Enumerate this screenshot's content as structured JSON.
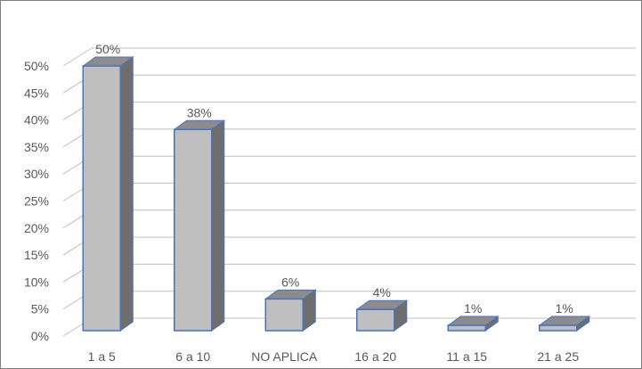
{
  "chart_data": {
    "type": "bar",
    "title": "",
    "xlabel": "",
    "ylabel": "",
    "categories": [
      "1 a 5",
      "6 a 10",
      "NO APLICA",
      "16 a 20",
      "11 a 15",
      "21 a 25"
    ],
    "values": [
      50,
      38,
      6,
      4,
      1,
      1
    ],
    "data_labels": [
      "50%",
      "38%",
      "6%",
      "4%",
      "1%",
      "1%"
    ],
    "ylim": [
      0,
      50
    ],
    "yticks": [
      0,
      5,
      10,
      15,
      20,
      25,
      30,
      35,
      40,
      45,
      50
    ],
    "ytick_labels": [
      "0%",
      "5%",
      "10%",
      "15%",
      "20%",
      "25%",
      "30%",
      "35%",
      "40%",
      "45%",
      "50%"
    ],
    "grid": true,
    "legend": "none",
    "style": "3d-column",
    "colors": {
      "front": "#bfbfbf",
      "side": "#6e6e6e",
      "top": "#8c8c8c",
      "edge": "#4472c4",
      "grid": "#bfbfbf",
      "text": "#595959"
    }
  }
}
